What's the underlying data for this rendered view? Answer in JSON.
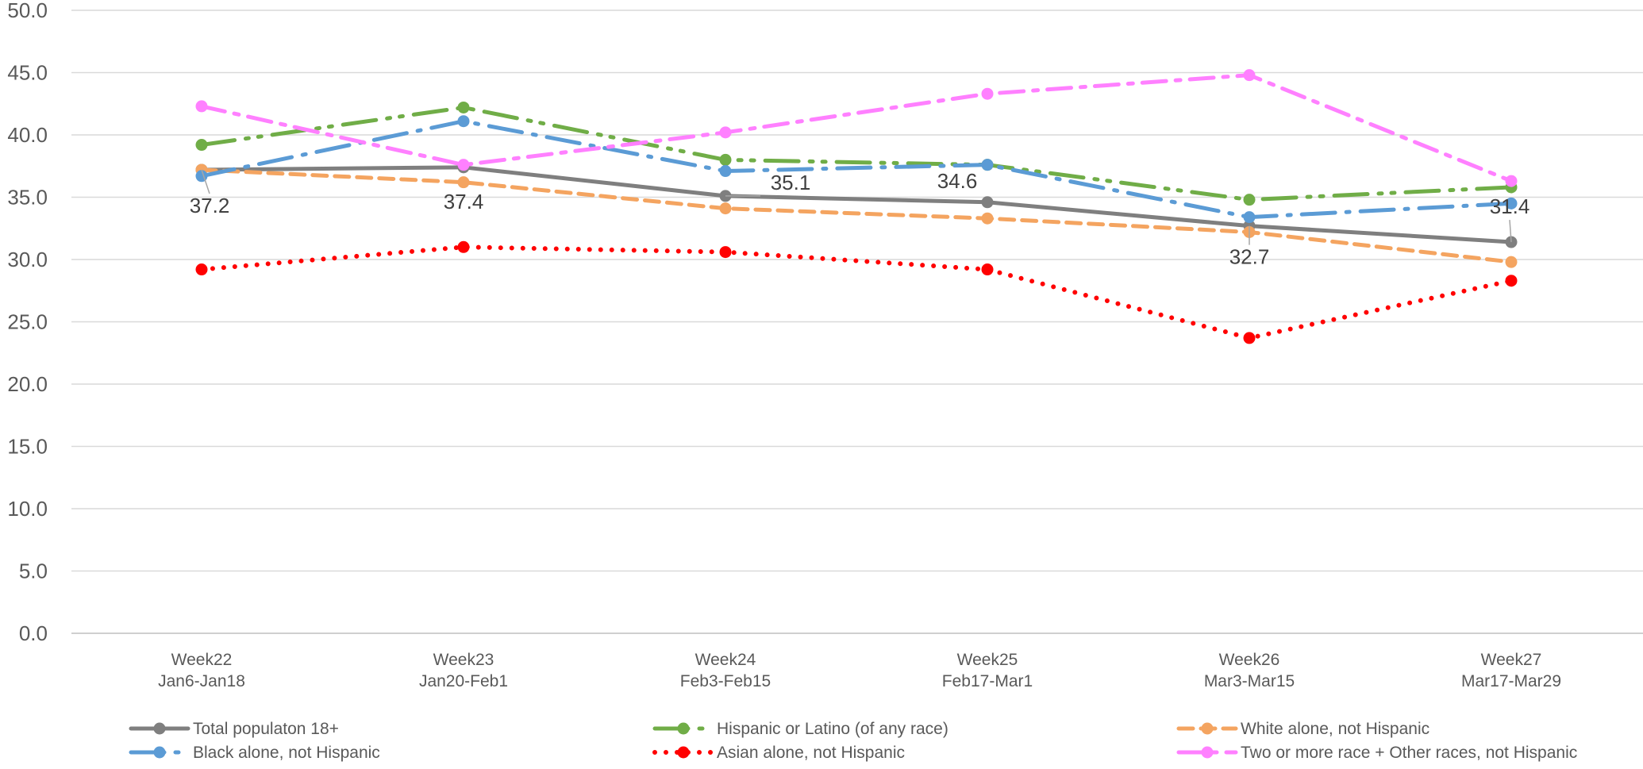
{
  "chart_data": {
    "type": "line",
    "title": "",
    "xlabel": "",
    "ylabel": "",
    "ylim": [
      0,
      50
    ],
    "y_ticks": [
      "0.0",
      "5.0",
      "10.0",
      "15.0",
      "20.0",
      "25.0",
      "30.0",
      "35.0",
      "40.0",
      "45.0",
      "50.0"
    ],
    "grid": true,
    "legend_position": "bottom",
    "categories": [
      [
        "Week22",
        "Jan6-Jan18"
      ],
      [
        "Week23",
        "Jan20-Feb1"
      ],
      [
        "Week24",
        "Feb3-Feb15"
      ],
      [
        "Week25",
        "Feb17-Mar1"
      ],
      [
        "Week26",
        "Mar3-Mar15"
      ],
      [
        "Week27",
        "Mar17-Mar29"
      ]
    ],
    "series": [
      {
        "name": "Total populaton 18+",
        "color": "#7f7f7f",
        "dash": "solid",
        "width": 5,
        "values": [
          37.2,
          37.4,
          35.1,
          34.6,
          32.7,
          31.4
        ],
        "data_labels": [
          "37.2",
          "37.4",
          "35.1",
          "34.6",
          "32.7",
          "31.4"
        ]
      },
      {
        "name": "Hispanic or Latino (of any race)",
        "color": "#70ad47",
        "dash": "longdashdotdot",
        "width": 5,
        "values": [
          39.2,
          42.2,
          38.0,
          37.6,
          34.8,
          35.8
        ]
      },
      {
        "name": "White alone, not Hispanic",
        "color": "#f4a460",
        "dash": "dash",
        "width": 5,
        "values": [
          37.2,
          36.2,
          34.1,
          33.3,
          32.2,
          29.8
        ]
      },
      {
        "name": "Black alone, not Hispanic",
        "color": "#5b9bd5",
        "dash": "longdashdot",
        "width": 5,
        "values": [
          36.7,
          41.1,
          37.1,
          37.6,
          33.4,
          34.5
        ]
      },
      {
        "name": "Asian alone, not Hispanic",
        "color": "#ff0000",
        "dash": "dot",
        "width": 6,
        "values": [
          29.2,
          31.0,
          30.6,
          29.2,
          23.7,
          28.3
        ]
      },
      {
        "name": "Two or more race + Other races, not Hispanic",
        "color": "#ff80ff",
        "dash": "dashdot",
        "width": 5,
        "values": [
          42.3,
          37.6,
          40.2,
          43.3,
          44.8,
          36.3
        ]
      }
    ]
  }
}
